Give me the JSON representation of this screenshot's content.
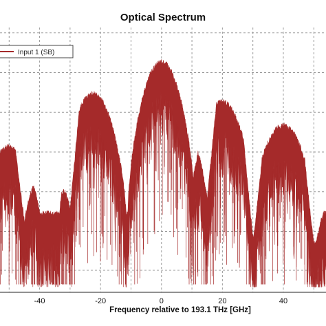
{
  "chart_data": {
    "type": "line",
    "title": "Optical Spectrum",
    "xlabel": "Frequency relative to 193.1 THz [GHz]",
    "ylabel": "",
    "xlim": [
      -53,
      54
    ],
    "ylim": [
      0,
      1
    ],
    "x_ticks": [
      -40,
      -20,
      0,
      20,
      40
    ],
    "x_tick_labels": [
      "-40",
      "-20",
      "0",
      "20",
      "40"
    ],
    "grid": true,
    "legend": {
      "placement": "top-left",
      "entries": [
        "Input 1  (SB)"
      ]
    },
    "series": [
      {
        "name": "Input 1  (SB)",
        "color": "#a52a2a",
        "lobes": [
          {
            "center": -50,
            "peak": 0.56
          },
          {
            "center": -22.5,
            "peak": 0.76
          },
          {
            "center": 0,
            "peak": 0.88
          },
          {
            "center": 20,
            "peak": 0.73
          },
          {
            "center": 40,
            "peak": 0.64
          }
        ],
        "nulls": [
          -45,
          -30,
          15,
          30,
          50
        ]
      }
    ]
  }
}
